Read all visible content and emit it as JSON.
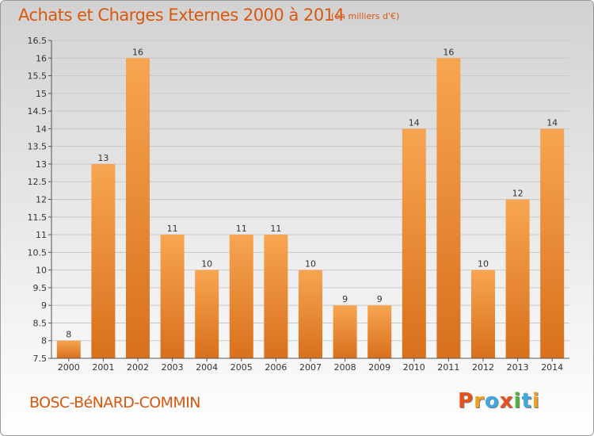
{
  "title": "Achats et Charges Externes 2000 à 2014",
  "subtitle": "(en milliers d'€)",
  "commune": "BOSC-BéNARD-COMMIN",
  "logo": {
    "letters": [
      {
        "char": "P",
        "color": "#e8501c"
      },
      {
        "char": "r",
        "color": "#f0a020"
      },
      {
        "char": "o",
        "color": "#40a8e0"
      },
      {
        "char": "x",
        "color": "#e8501c"
      },
      {
        "char": "i",
        "color": "#50b040"
      },
      {
        "char": "t",
        "color": "#40a8e0"
      },
      {
        "char": "i",
        "color": "#f0a020"
      }
    ]
  },
  "chart_data": {
    "type": "bar",
    "title": "Achats et Charges Externes 2000 à 2014",
    "subtitle": "(en milliers d'€)",
    "categories": [
      "2000",
      "2001",
      "2002",
      "2003",
      "2004",
      "2005",
      "2006",
      "2007",
      "2008",
      "2009",
      "2010",
      "2011",
      "2012",
      "2013",
      "2014"
    ],
    "values": [
      8,
      13,
      16,
      11,
      10,
      11,
      11,
      10,
      9,
      9,
      14,
      16,
      10,
      12,
      14
    ],
    "data_labels": [
      "8",
      "13",
      "16",
      "11",
      "10",
      "11",
      "11",
      "10",
      "9",
      "9",
      "14",
      "16",
      "10",
      "12",
      "14"
    ],
    "ylim": [
      7.5,
      16.5
    ],
    "yticks": [
      7.5,
      8,
      8.5,
      9,
      9.5,
      10,
      10.5,
      11,
      11.5,
      12,
      12.5,
      13,
      13.5,
      14,
      14.5,
      15,
      15.5,
      16,
      16.5
    ],
    "ytick_labels": [
      "7.5",
      "8",
      "8.5",
      "9",
      "9.5",
      "10",
      "10.5",
      "11",
      "11.5",
      "12",
      "12.5",
      "13",
      "13.5",
      "14",
      "14.5",
      "15",
      "15.5",
      "16",
      "16.5"
    ],
    "grid": true,
    "bar_color_top": "#f7a552",
    "bar_color_bottom": "#d8701c",
    "xlabel": "",
    "ylabel": ""
  }
}
